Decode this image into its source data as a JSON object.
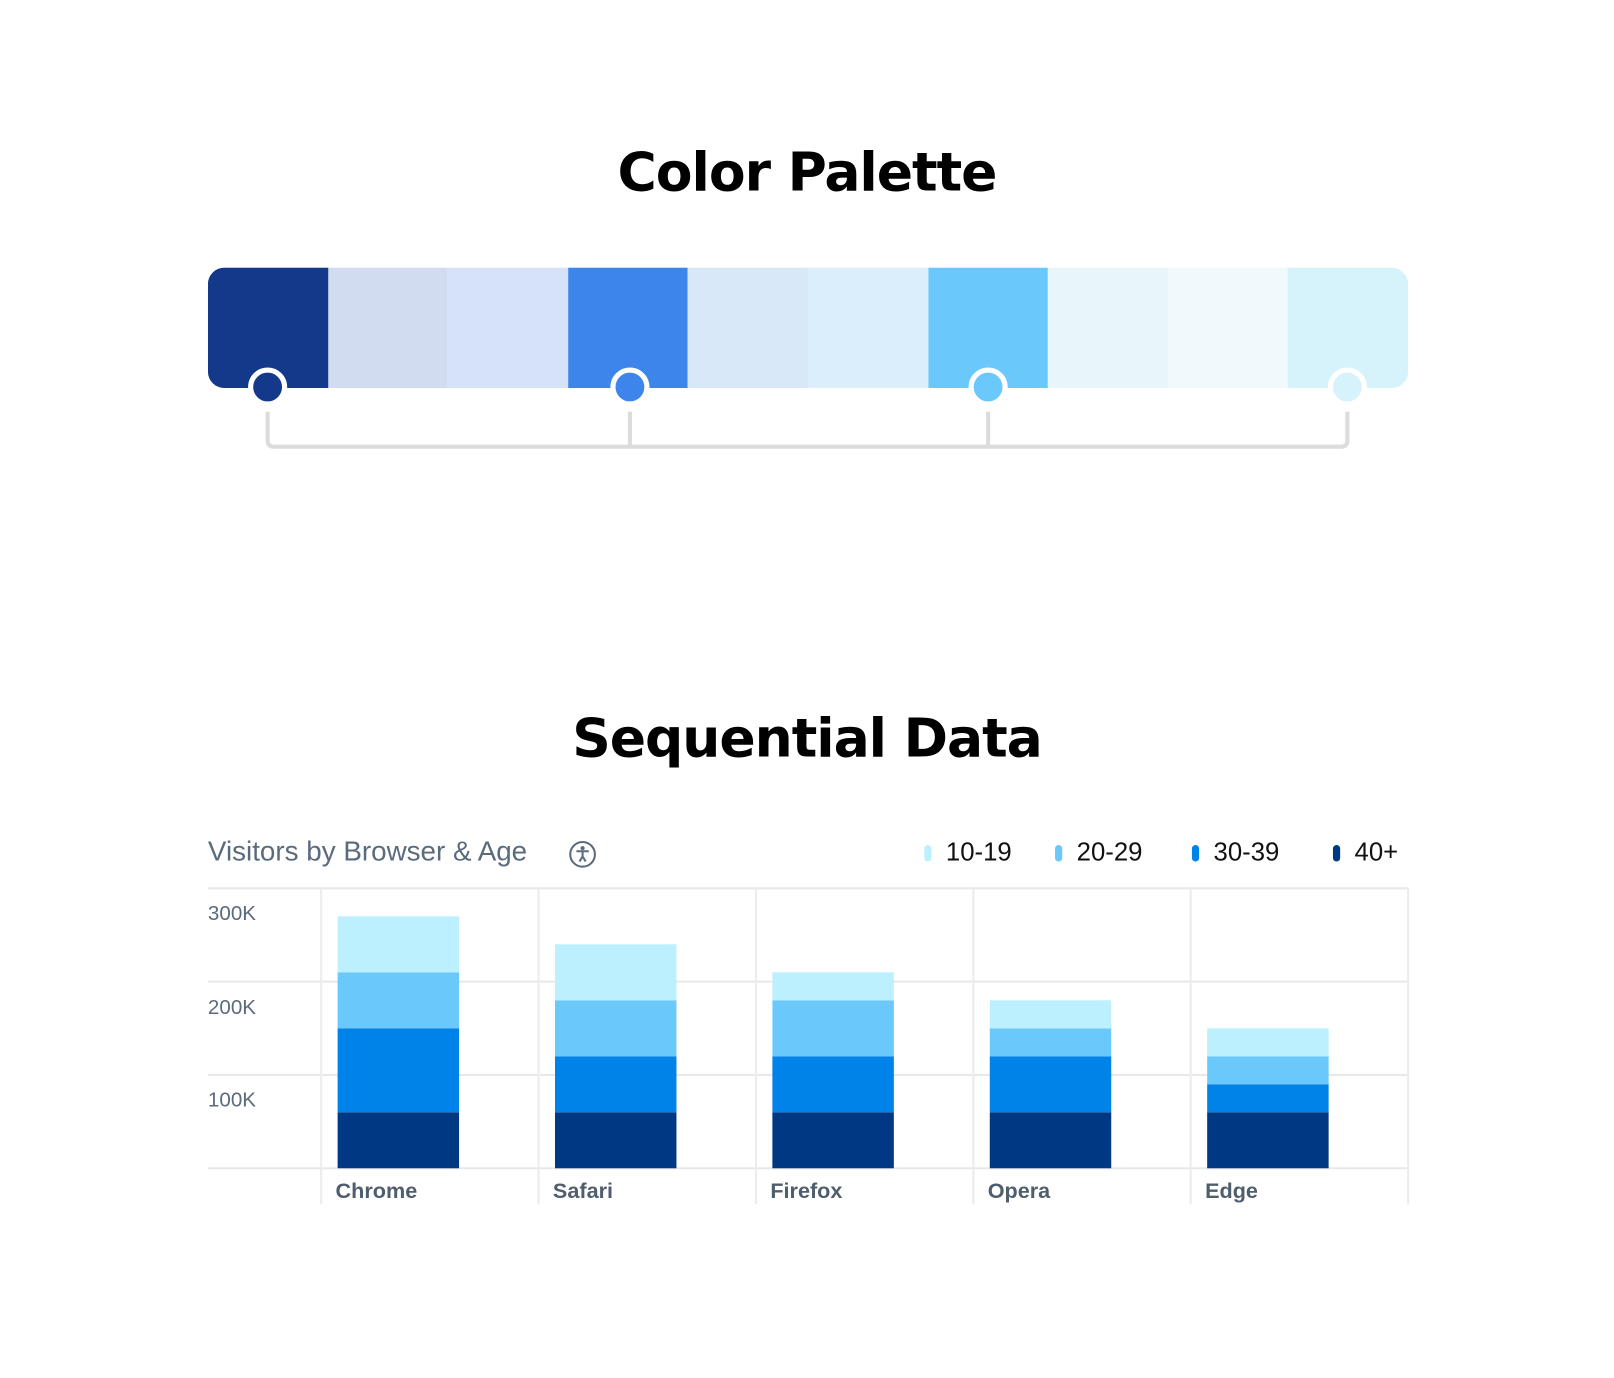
{
  "palette": {
    "title": "Color Palette",
    "swatches": [
      "#15398a",
      "#d1dcf0",
      "#d5e2f8",
      "#3d85ea",
      "#d8e8f8",
      "#dbeefb",
      "#6bc8fb",
      "#e8f6fc",
      "#f0f9fc",
      "#d6f3fc"
    ],
    "key_colors": [
      "#15398a",
      "#3d85ea",
      "#6bc8fb",
      "#d6f3fc"
    ]
  },
  "section": {
    "title": "Sequential Data"
  },
  "chart_data": {
    "type": "bar",
    "stacked": true,
    "title": "Visitors by Browser & Age",
    "title_icon": "accessibility-icon",
    "categories": [
      "Chrome",
      "Safari",
      "Firefox",
      "Opera",
      "Edge"
    ],
    "series": [
      {
        "name": "40+",
        "color": "#003884",
        "values": [
          60,
          60,
          60,
          60,
          60
        ]
      },
      {
        "name": "30-39",
        "color": "#0083e8",
        "values": [
          90,
          60,
          60,
          60,
          30
        ]
      },
      {
        "name": "20-29",
        "color": "#6bc8fb",
        "values": [
          60,
          60,
          60,
          30,
          30
        ]
      },
      {
        "name": "10-19",
        "color": "#bdf0fe",
        "values": [
          60,
          60,
          30,
          30,
          30
        ]
      }
    ],
    "legend_order": [
      "10-19",
      "20-29",
      "30-39",
      "40+"
    ],
    "legend_placement": "top-right",
    "yticks": [
      {
        "value": 100,
        "label": "100K"
      },
      {
        "value": 200,
        "label": "200K"
      },
      {
        "value": 300,
        "label": "300K"
      }
    ],
    "ylim": [
      0,
      300
    ],
    "grid": true
  }
}
